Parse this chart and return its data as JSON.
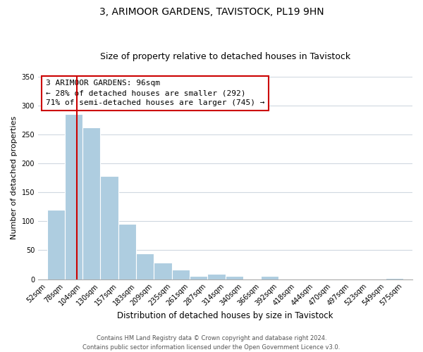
{
  "title": "3, ARIMOOR GARDENS, TAVISTOCK, PL19 9HN",
  "subtitle": "Size of property relative to detached houses in Tavistock",
  "xlabel": "Distribution of detached houses by size in Tavistock",
  "ylabel": "Number of detached properties",
  "bar_edges": [
    52,
    78,
    104,
    130,
    157,
    183,
    209,
    235,
    261,
    287,
    314,
    340,
    366,
    392,
    418,
    444,
    470,
    497,
    523,
    549,
    575
  ],
  "bar_heights": [
    120,
    285,
    262,
    178,
    96,
    45,
    29,
    16,
    5,
    9,
    5,
    0,
    5,
    0,
    0,
    0,
    0,
    0,
    0,
    2
  ],
  "bar_color": "#aecde0",
  "bar_edge_color": "#ffffff",
  "property_line_x": 96,
  "ylim": [
    0,
    350
  ],
  "yticks": [
    0,
    50,
    100,
    150,
    200,
    250,
    300,
    350
  ],
  "annotation_title": "3 ARIMOOR GARDENS: 96sqm",
  "annotation_line1": "← 28% of detached houses are smaller (292)",
  "annotation_line2": "71% of semi-detached houses are larger (745) →",
  "footer_line1": "Contains HM Land Registry data © Crown copyright and database right 2024.",
  "footer_line2": "Contains public sector information licensed under the Open Government Licence v3.0.",
  "background_color": "#ffffff",
  "grid_color": "#d0d8e0",
  "vline_color": "#cc0000",
  "title_fontsize": 10,
  "subtitle_fontsize": 9,
  "xlabel_fontsize": 8.5,
  "ylabel_fontsize": 8,
  "tick_fontsize": 7,
  "annotation_fontsize": 8,
  "footer_fontsize": 6
}
